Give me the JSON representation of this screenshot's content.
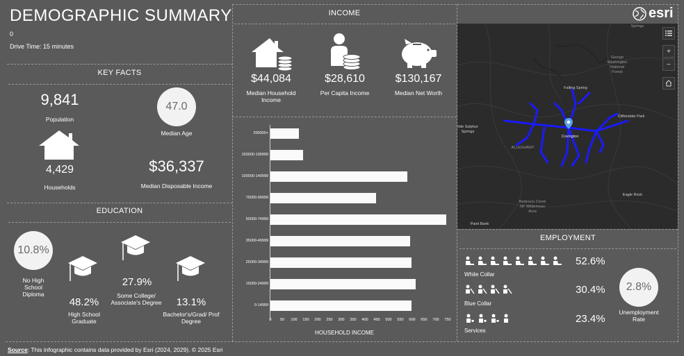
{
  "header": {
    "title": "DEMOGRAPHIC SUMMARY",
    "subtitle_value": "0",
    "drive_time": "Drive Time: 15 minutes"
  },
  "key_facts": {
    "heading": "KEY FACTS",
    "population_value": "9,841",
    "population_label": "Population",
    "median_age_value": "47.0",
    "median_age_label": "Median Age",
    "households_value": "4,429",
    "households_label": "Households",
    "disposable_income_value": "$36,337",
    "disposable_income_label": "Median Disposable Income"
  },
  "education": {
    "heading": "EDUCATION",
    "no_hs_value": "10.8%",
    "no_hs_label": "No High School Diploma",
    "hs_value": "48.2%",
    "hs_label": "High School Graduate",
    "some_college_value": "27.9%",
    "some_college_label": "Some College/ Associate's Degree",
    "bachelors_value": "13.1%",
    "bachelors_label": "Bachelor's/Grad/ Prof Degree"
  },
  "income": {
    "heading": "INCOME",
    "median_household_value": "$44,084",
    "median_household_label": "Median Household Income",
    "per_capita_value": "$28,610",
    "per_capita_label": "Per Capita Income",
    "net_worth_value": "$130,167",
    "net_worth_label": "Median Net Worth"
  },
  "chart_data": {
    "type": "bar",
    "orientation": "horizontal",
    "title": "HOUSEHOLD INCOME",
    "categories": [
      "200000+",
      "150000-199999",
      "100000-149999",
      "75000-99999",
      "50000-74999",
      "35000-49999",
      "25000-34999",
      "15000-24999",
      "0-14999"
    ],
    "values": [
      120,
      138,
      578,
      448,
      745,
      590,
      598,
      615,
      598
    ],
    "xticks": [
      "0",
      "50",
      "100",
      "150",
      "200",
      "250",
      "300",
      "350",
      "400",
      "450",
      "500",
      "550",
      "600",
      "650",
      "700",
      "750"
    ],
    "xlim": [
      0,
      750
    ]
  },
  "map": {
    "labels": {
      "springs": "Springs",
      "george_washington": "George Washington National Forest",
      "falling_spring": "Falling Spring",
      "white_sulphur": "hite Sulphur Springs",
      "covington": "Covington",
      "cliftondale": "Cliftondale Park",
      "alleghany": "ALLEGHANY",
      "eagle_rock": "Eagle Rock",
      "barbours_creek": "Barbours Creek NF Wilderness Area",
      "paint_bank": "Paint Bank"
    },
    "zoom_in": "+",
    "zoom_out": "−",
    "brand": "esri"
  },
  "employment": {
    "heading": "EMPLOYMENT",
    "white_collar_value": "52.6%",
    "white_collar_label": "White Collar",
    "blue_collar_value": "30.4%",
    "blue_collar_label": "Blue Collar",
    "services_value": "23.4%",
    "services_label": "Services",
    "unemployment_value": "2.8%",
    "unemployment_label": "Unemployment Rate"
  },
  "footer": {
    "source_label": "Source",
    "source_text": ": This infographic contains data provided by Esri (2024, 2029). © 2025 Esri"
  }
}
